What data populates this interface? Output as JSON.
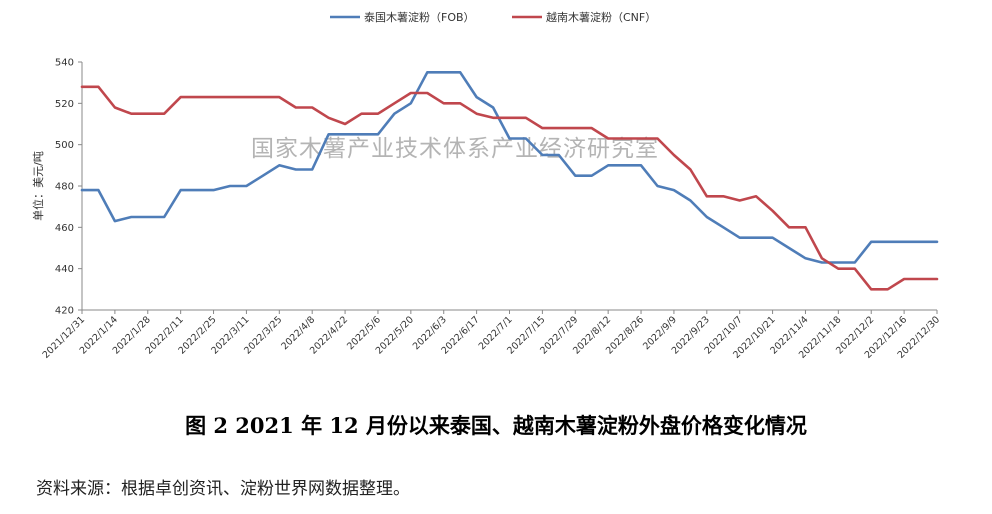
{
  "chart_data": {
    "type": "line",
    "ylabel": "单位：美元/吨",
    "ylim": [
      420,
      540
    ],
    "yticks": [
      420,
      440,
      460,
      480,
      500,
      520,
      540
    ],
    "grid": false,
    "legend_position": "top-center",
    "watermark": "国家木薯产业技术体系产业经济研究室",
    "x_tick_labels": [
      "2021/12/31",
      "2022/1/14",
      "2022/1/28",
      "2022/2/11",
      "2022/2/25",
      "2022/3/11",
      "2022/3/25",
      "2022/4/8",
      "2022/4/22",
      "2022/5/6",
      "2022/5/20",
      "2022/6/3",
      "2022/6/17",
      "2022/7/1",
      "2022/7/15",
      "2022/7/29",
      "2022/8/12",
      "2022/8/26",
      "2022/9/9",
      "2022/9/23",
      "2022/10/7",
      "2022/10/21",
      "2022/11/4",
      "2022/11/18",
      "2022/12/2",
      "2022/12/16",
      "2022/12/30"
    ],
    "series": [
      {
        "name": "泰国木薯淀粉（FOB）",
        "color": "#4f7db8",
        "values": [
          478,
          478,
          463,
          465,
          465,
          465,
          478,
          478,
          478,
          480,
          480,
          485,
          490,
          488,
          488,
          505,
          505,
          505,
          505,
          515,
          520,
          535,
          535,
          535,
          523,
          518,
          503,
          503,
          495,
          495,
          485,
          485,
          490,
          490,
          490,
          480,
          478,
          473,
          465,
          460,
          455,
          455,
          455,
          450,
          445,
          443,
          443,
          443,
          453,
          453,
          453,
          453,
          453
        ]
      },
      {
        "name": "越南木薯淀粉（CNF）",
        "color": "#c0474d",
        "values": [
          528,
          528,
          518,
          515,
          515,
          515,
          523,
          523,
          523,
          523,
          523,
          523,
          523,
          518,
          518,
          513,
          510,
          515,
          515,
          520,
          525,
          525,
          520,
          520,
          515,
          513,
          513,
          513,
          508,
          508,
          508,
          508,
          503,
          503,
          503,
          503,
          495,
          488,
          475,
          475,
          473,
          475,
          468,
          460,
          460,
          445,
          440,
          440,
          430,
          430,
          435,
          435,
          435
        ]
      }
    ]
  },
  "figure": {
    "title": "图 2    2021 年 12 月份以来泰国、越南木薯淀粉外盘价格变化情况",
    "source": "资料来源：根据卓创资讯、淀粉世界网数据整理。"
  }
}
